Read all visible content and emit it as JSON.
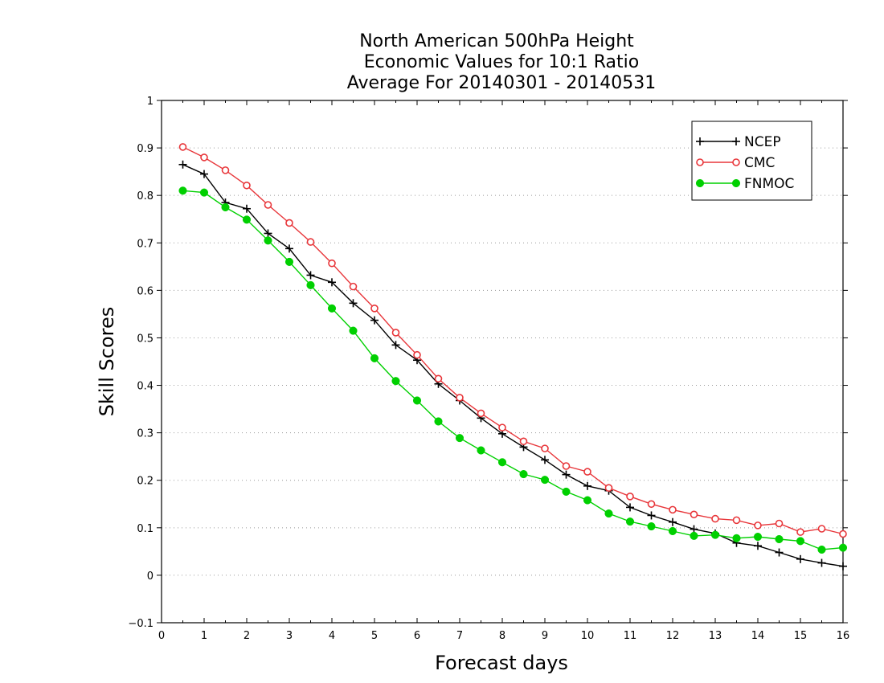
{
  "chart_data": {
    "type": "line",
    "title": [
      "North American 500hPa Height",
      "Economic Values for 10:1 Ratio",
      "Average For 20140301 - 20140531"
    ],
    "xlabel": "Forecast days",
    "ylabel": "Skill Scores",
    "xlim": [
      0,
      16
    ],
    "ylim": [
      -0.1,
      1
    ],
    "xticks": [
      "0",
      "1",
      "2",
      "3",
      "4",
      "5",
      "6",
      "7",
      "8",
      "9",
      "10",
      "11",
      "12",
      "13",
      "14",
      "15",
      "16"
    ],
    "yticks": [
      "−0.1",
      "0",
      "0.1",
      "0.2",
      "0.3",
      "0.4",
      "0.5",
      "0.6",
      "0.7",
      "0.8",
      "0.9",
      "1"
    ],
    "grid": true,
    "legend_position": "top-right",
    "x": [
      0.5,
      1,
      1.5,
      2,
      2.5,
      3,
      3.5,
      4,
      4.5,
      5,
      5.5,
      6,
      6.5,
      7,
      7.5,
      8,
      8.5,
      9,
      9.5,
      10,
      10.5,
      11,
      11.5,
      12,
      12.5,
      13,
      13.5,
      14,
      14.5,
      15,
      15.5,
      16
    ],
    "series": [
      {
        "name": "NCEP",
        "color": "#000000",
        "marker": "plus",
        "values": [
          0.865,
          0.845,
          0.785,
          0.772,
          0.72,
          0.688,
          0.632,
          0.617,
          0.573,
          0.537,
          0.485,
          0.453,
          0.403,
          0.368,
          0.331,
          0.298,
          0.27,
          0.243,
          0.212,
          0.188,
          0.178,
          0.143,
          0.126,
          0.112,
          0.097,
          0.088,
          0.068,
          0.062,
          0.048,
          0.034,
          0.026,
          0.019
        ]
      },
      {
        "name": "CMC",
        "color": "#e8363a",
        "marker": "open-circle",
        "values": [
          0.902,
          0.88,
          0.853,
          0.821,
          0.78,
          0.742,
          0.702,
          0.657,
          0.608,
          0.562,
          0.511,
          0.464,
          0.414,
          0.374,
          0.341,
          0.311,
          0.282,
          0.267,
          0.23,
          0.218,
          0.184,
          0.166,
          0.15,
          0.138,
          0.128,
          0.119,
          0.116,
          0.105,
          0.109,
          0.091,
          0.098,
          0.087
        ]
      },
      {
        "name": "FNMOC",
        "color": "#00d000",
        "marker": "filled-circle",
        "values": [
          0.81,
          0.806,
          0.775,
          0.749,
          0.705,
          0.66,
          0.611,
          0.562,
          0.515,
          0.457,
          0.409,
          0.368,
          0.324,
          0.289,
          0.263,
          0.238,
          0.213,
          0.201,
          0.176,
          0.158,
          0.13,
          0.113,
          0.103,
          0.093,
          0.083,
          0.085,
          0.078,
          0.081,
          0.076,
          0.072,
          0.054,
          0.058
        ]
      }
    ]
  }
}
